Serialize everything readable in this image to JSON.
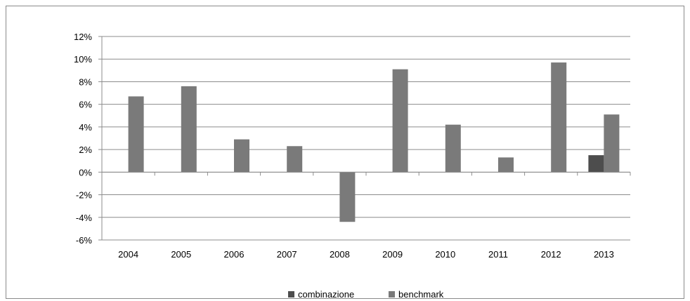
{
  "chart_data": {
    "type": "bar",
    "title": "",
    "xlabel": "",
    "ylabel": "",
    "categories": [
      "2004",
      "2005",
      "2006",
      "2007",
      "2008",
      "2009",
      "2010",
      "2011",
      "2012",
      "2013"
    ],
    "series": [
      {
        "name": "combinazione",
        "color": "#4d4d4d",
        "values": [
          null,
          null,
          null,
          null,
          null,
          null,
          null,
          null,
          null,
          1.5
        ]
      },
      {
        "name": "benchmark",
        "color": "#7a7a7a",
        "values": [
          6.7,
          7.6,
          2.9,
          2.3,
          -4.4,
          9.1,
          4.2,
          1.3,
          9.7,
          5.1
        ]
      }
    ],
    "ylim": [
      -6,
      12
    ],
    "yticks": [
      -6,
      -4,
      -2,
      0,
      2,
      4,
      6,
      8,
      10,
      12
    ],
    "ytick_labels": [
      "-6%",
      "-4%",
      "-2%",
      "0%",
      "2%",
      "4%",
      "6%",
      "8%",
      "10%",
      "12%"
    ],
    "grid": true,
    "legend_position": "bottom"
  }
}
